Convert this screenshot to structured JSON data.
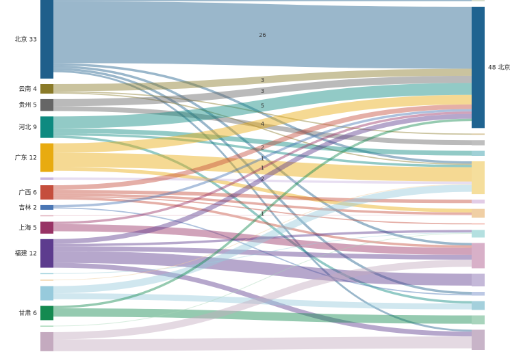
{
  "chart_data": {
    "type": "sankey",
    "title": "",
    "source_nodes": [
      {
        "name": "北京",
        "value": 33,
        "color": "#1f5f8b",
        "show_label": true
      },
      {
        "name": "云南",
        "value": 4,
        "color": "#8a7a28",
        "show_label": true
      },
      {
        "name": "贵州",
        "value": 5,
        "color": "#666666",
        "show_label": true
      },
      {
        "name": "河北",
        "value": 9,
        "color": "#0e8a80",
        "show_label": true
      },
      {
        "name": "广东",
        "value": 12,
        "color": "#e8ab10",
        "show_label": true
      },
      {
        "name": "",
        "value": 1,
        "color": "#c9b6e0",
        "show_label": false
      },
      {
        "name": "广西",
        "value": 6,
        "color": "#c54e3c",
        "show_label": true
      },
      {
        "name": "吉林",
        "value": 2,
        "color": "#4a76b4",
        "show_label": true
      },
      {
        "name": "",
        "value": 0.3,
        "color": "#e4b9c4",
        "show_label": false
      },
      {
        "name": "上海",
        "value": 5,
        "color": "#983365",
        "show_label": true
      },
      {
        "name": "福建",
        "value": 12,
        "color": "#5d3c8e",
        "show_label": true
      },
      {
        "name": "",
        "value": 0.3,
        "color": "#9fd0dc",
        "show_label": false
      },
      {
        "name": "",
        "value": 0.3,
        "color": "#f0cfa0",
        "show_label": false
      },
      {
        "name": "",
        "value": 6,
        "color": "#97cadc",
        "show_label": false
      },
      {
        "name": "甘肃",
        "value": 6,
        "color": "#148a50",
        "show_label": true
      },
      {
        "name": "",
        "value": 0.3,
        "color": "#a8d8b8",
        "show_label": false
      },
      {
        "name": "",
        "value": 8,
        "color": "#c4aabf",
        "show_label": false
      }
    ],
    "target_nodes": [
      {
        "name": "",
        "value": 0.5,
        "color": "#d6dccb",
        "show_label": false
      },
      {
        "name": "北京",
        "value": 48,
        "color": "#1f6390",
        "show_label": true
      },
      {
        "name": "",
        "value": 0.5,
        "color": "#d8c8a0",
        "show_label": false
      },
      {
        "name": "",
        "value": 2,
        "color": "#bfbfbf",
        "show_label": false
      },
      {
        "name": "",
        "value": 2,
        "color": "#9fd0d6",
        "show_label": false
      },
      {
        "name": "",
        "value": 13,
        "color": "#f5de9c",
        "show_label": false
      },
      {
        "name": "",
        "value": 1.5,
        "color": "#e2cce6",
        "show_label": false
      },
      {
        "name": "",
        "value": 3.5,
        "color": "#f0cfa4",
        "show_label": false
      },
      {
        "name": "",
        "value": 0.5,
        "color": "#f3c0b8",
        "show_label": false
      },
      {
        "name": "",
        "value": 3,
        "color": "#b4e0e0",
        "show_label": false
      },
      {
        "name": "",
        "value": 10,
        "color": "#d8b0c8",
        "show_label": false
      },
      {
        "name": "",
        "value": 5,
        "color": "#c4b8d8",
        "show_label": false
      },
      {
        "name": "",
        "value": 1.5,
        "color": "#bcc8e4",
        "show_label": false
      },
      {
        "name": "",
        "value": 3.5,
        "color": "#a4d0dc",
        "show_label": false
      },
      {
        "name": "",
        "value": 3.5,
        "color": "#a8d4bc",
        "show_label": false
      },
      {
        "name": "",
        "value": 8,
        "color": "#c8b4c8",
        "show_label": false
      }
    ],
    "flows": [
      {
        "source": 0,
        "target": 1,
        "value": 26,
        "show_label": true
      },
      {
        "source": 0,
        "target": 0,
        "value": 0.5
      },
      {
        "source": 0,
        "target": 5,
        "value": 1
      },
      {
        "source": 0,
        "target": 10,
        "value": 1
      },
      {
        "source": 0,
        "target": 12,
        "value": 1
      },
      {
        "source": 0,
        "target": 15,
        "value": 0.8
      },
      {
        "source": 1,
        "target": 1,
        "value": 3,
        "show_label": true
      },
      {
        "source": 1,
        "target": 2,
        "value": 0.5
      },
      {
        "source": 1,
        "target": 5,
        "value": 0.5
      },
      {
        "source": 2,
        "target": 1,
        "value": 3,
        "show_label": true
      },
      {
        "source": 2,
        "target": 3,
        "value": 2
      },
      {
        "source": 3,
        "target": 1,
        "value": 5,
        "show_label": true
      },
      {
        "source": 3,
        "target": 4,
        "value": 2
      },
      {
        "source": 3,
        "target": 13,
        "value": 1
      },
      {
        "source": 3,
        "target": 5,
        "value": 1
      },
      {
        "source": 4,
        "target": 1,
        "value": 4,
        "show_label": true
      },
      {
        "source": 4,
        "target": 5,
        "value": 6
      },
      {
        "source": 4,
        "target": 7,
        "value": 1.5
      },
      {
        "source": 5,
        "target": 5,
        "value": 1
      },
      {
        "source": 6,
        "target": 1,
        "value": 2,
        "show_label": true
      },
      {
        "source": 6,
        "target": 8,
        "value": 0.5
      },
      {
        "source": 6,
        "target": 7,
        "value": 1
      },
      {
        "source": 6,
        "target": 10,
        "value": 1
      },
      {
        "source": 6,
        "target": 6,
        "value": 1.5
      },
      {
        "source": 7,
        "target": 1,
        "value": 1,
        "show_label": true
      },
      {
        "source": 7,
        "target": 12,
        "value": 0.5
      },
      {
        "source": 8,
        "target": 7,
        "value": 0.3
      },
      {
        "source": 9,
        "target": 1,
        "value": 1,
        "show_label": true
      },
      {
        "source": 9,
        "target": 10,
        "value": 3
      },
      {
        "source": 10,
        "target": 1,
        "value": 2,
        "show_label": true
      },
      {
        "source": 10,
        "target": 10,
        "value": 2
      },
      {
        "source": 10,
        "target": 11,
        "value": 5
      },
      {
        "source": 10,
        "target": 9,
        "value": 1
      },
      {
        "source": 10,
        "target": 15,
        "value": 2
      },
      {
        "source": 11,
        "target": 9,
        "value": 0.3
      },
      {
        "source": 12,
        "target": 5,
        "value": 0.3
      },
      {
        "source": 13,
        "target": 5,
        "value": 3
      },
      {
        "source": 13,
        "target": 13,
        "value": 2.5
      },
      {
        "source": 14,
        "target": 1,
        "value": 1,
        "show_label": true
      },
      {
        "source": 14,
        "target": 14,
        "value": 3.5
      },
      {
        "source": 15,
        "target": 9,
        "value": 0.3
      },
      {
        "source": 16,
        "target": 10,
        "value": 3
      },
      {
        "source": 16,
        "target": 15,
        "value": 5
      }
    ]
  }
}
